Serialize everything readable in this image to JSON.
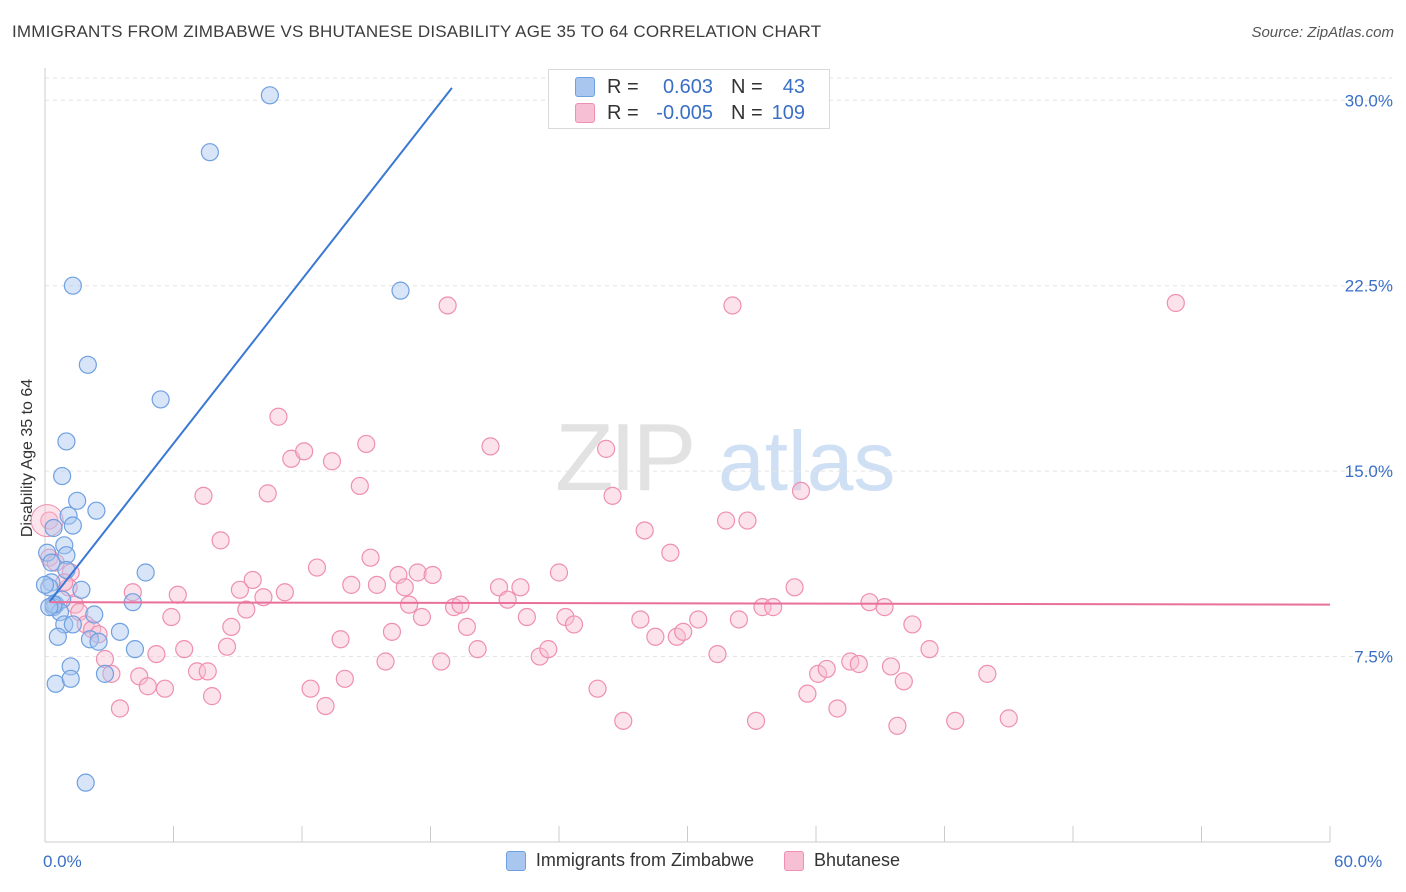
{
  "title": "IMMIGRANTS FROM ZIMBABWE VS BHUTANESE DISABILITY AGE 35 TO 64 CORRELATION CHART",
  "source": "Source: ZipAtlas.com",
  "watermark": {
    "zip": "ZIP",
    "atlas": "atlas"
  },
  "colors": {
    "blue": "#6fa0e0",
    "blue_fill": "#a9c6ef",
    "blue_line": "#3a78d4",
    "pink": "#ef8fb1",
    "pink_fill": "#f7bfd3",
    "pink_line": "#e8709a",
    "axis_text": "#3a6fc6"
  },
  "legend": {
    "rows": [
      {
        "r_label": "R =",
        "r_value": "0.603",
        "n_label": "N =",
        "n_value": "43",
        "series": "blue"
      },
      {
        "r_label": "R =",
        "r_value": "-0.005",
        "n_label": "N =",
        "n_value": "109",
        "series": "pink"
      }
    ]
  },
  "bottom_legend": [
    {
      "label": "Immigrants from Zimbabwe",
      "series": "blue"
    },
    {
      "label": "Bhutanese",
      "series": "pink"
    }
  ],
  "chart_data": {
    "type": "scatter",
    "title": "IMMIGRANTS FROM ZIMBABWE VS BHUTANESE DISABILITY AGE 35 TO 64 CORRELATION CHART",
    "xlabel": "",
    "ylabel": "Disability Age 35 to 64",
    "xlim": [
      0,
      60
    ],
    "ylim": [
      0,
      30.9
    ],
    "x_tick_labels": [
      "0.0%",
      "60.0%"
    ],
    "y_ticks": [
      7.5,
      15.0,
      22.5,
      30.0
    ],
    "y_tick_labels": [
      "7.5%",
      "15.0%",
      "22.5%",
      "30.0%"
    ],
    "grid": true,
    "series": [
      {
        "name": "Immigrants from Zimbabwe",
        "color": "blue",
        "trend": {
          "x0": 0.2,
          "y0": 9.7,
          "x1": 19.0,
          "y1": 30.5
        },
        "points": [
          [
            10.5,
            30.2
          ],
          [
            7.7,
            27.9
          ],
          [
            1.3,
            22.5
          ],
          [
            16.6,
            22.3
          ],
          [
            2.0,
            19.3
          ],
          [
            5.4,
            17.9
          ],
          [
            1.0,
            16.2
          ],
          [
            0.8,
            14.8
          ],
          [
            1.5,
            13.8
          ],
          [
            2.4,
            13.4
          ],
          [
            1.1,
            13.2
          ],
          [
            0.4,
            12.7
          ],
          [
            1.3,
            12.8
          ],
          [
            0.9,
            12.0
          ],
          [
            1.0,
            11.6
          ],
          [
            0.1,
            11.7
          ],
          [
            0.3,
            11.3
          ],
          [
            4.7,
            10.9
          ],
          [
            1.0,
            11.0
          ],
          [
            0.3,
            10.5
          ],
          [
            0.2,
            10.3
          ],
          [
            1.7,
            10.2
          ],
          [
            0.5,
            9.6
          ],
          [
            0.8,
            9.8
          ],
          [
            4.1,
            9.7
          ],
          [
            0.4,
            9.5
          ],
          [
            0.7,
            9.3
          ],
          [
            2.3,
            9.2
          ],
          [
            0.9,
            8.8
          ],
          [
            1.3,
            8.8
          ],
          [
            3.5,
            8.5
          ],
          [
            0.6,
            8.3
          ],
          [
            2.1,
            8.2
          ],
          [
            2.5,
            8.1
          ],
          [
            4.2,
            7.8
          ],
          [
            1.2,
            7.1
          ],
          [
            2.8,
            6.8
          ],
          [
            0.5,
            6.4
          ],
          [
            1.2,
            6.6
          ],
          [
            1.9,
            2.4
          ],
          [
            0.0,
            10.4
          ],
          [
            0.4,
            9.6
          ],
          [
            0.2,
            9.5
          ]
        ]
      },
      {
        "name": "Bhutanese",
        "color": "pink",
        "trend": {
          "x0": 0.2,
          "y0": 9.7,
          "x1": 60.0,
          "y1": 9.6
        },
        "points": [
          [
            0.2,
            13.0
          ],
          [
            0.2,
            11.5
          ],
          [
            0.5,
            11.3
          ],
          [
            1.2,
            10.9
          ],
          [
            1.1,
            10.3
          ],
          [
            0.9,
            10.5
          ],
          [
            1.4,
            9.6
          ],
          [
            1.6,
            9.3
          ],
          [
            1.9,
            8.8
          ],
          [
            2.2,
            8.6
          ],
          [
            2.5,
            8.4
          ],
          [
            2.8,
            7.4
          ],
          [
            3.1,
            6.8
          ],
          [
            3.5,
            5.4
          ],
          [
            4.1,
            10.1
          ],
          [
            4.4,
            6.7
          ],
          [
            4.8,
            6.3
          ],
          [
            5.2,
            7.6
          ],
          [
            5.6,
            6.2
          ],
          [
            5.9,
            9.1
          ],
          [
            6.2,
            10.0
          ],
          [
            6.5,
            7.8
          ],
          [
            7.1,
            6.9
          ],
          [
            7.4,
            14.0
          ],
          [
            7.6,
            6.9
          ],
          [
            7.8,
            5.9
          ],
          [
            8.2,
            12.2
          ],
          [
            8.5,
            7.9
          ],
          [
            8.7,
            8.7
          ],
          [
            9.1,
            10.2
          ],
          [
            9.4,
            9.4
          ],
          [
            9.7,
            10.6
          ],
          [
            10.2,
            9.9
          ],
          [
            10.4,
            14.1
          ],
          [
            10.9,
            17.2
          ],
          [
            11.2,
            10.1
          ],
          [
            11.5,
            15.5
          ],
          [
            12.1,
            15.8
          ],
          [
            12.4,
            6.2
          ],
          [
            12.7,
            11.1
          ],
          [
            13.1,
            5.5
          ],
          [
            13.4,
            15.4
          ],
          [
            13.8,
            8.2
          ],
          [
            14.0,
            6.6
          ],
          [
            14.3,
            10.4
          ],
          [
            14.7,
            14.4
          ],
          [
            15.0,
            16.1
          ],
          [
            15.2,
            11.5
          ],
          [
            15.5,
            10.4
          ],
          [
            15.9,
            7.3
          ],
          [
            16.2,
            8.5
          ],
          [
            16.5,
            10.8
          ],
          [
            16.8,
            10.3
          ],
          [
            17.0,
            9.6
          ],
          [
            17.4,
            10.9
          ],
          [
            17.6,
            9.1
          ],
          [
            18.1,
            10.8
          ],
          [
            18.5,
            7.3
          ],
          [
            18.8,
            21.7
          ],
          [
            19.1,
            9.5
          ],
          [
            19.4,
            9.6
          ],
          [
            19.7,
            8.7
          ],
          [
            20.2,
            7.8
          ],
          [
            20.8,
            16.0
          ],
          [
            21.2,
            10.3
          ],
          [
            21.6,
            9.8
          ],
          [
            22.2,
            10.3
          ],
          [
            22.5,
            9.1
          ],
          [
            23.1,
            7.5
          ],
          [
            23.5,
            7.8
          ],
          [
            24.0,
            10.9
          ],
          [
            24.3,
            9.1
          ],
          [
            24.7,
            8.8
          ],
          [
            25.8,
            6.2
          ],
          [
            26.2,
            15.9
          ],
          [
            26.5,
            14.0
          ],
          [
            27.0,
            4.9
          ],
          [
            27.8,
            9.0
          ],
          [
            28.0,
            12.6
          ],
          [
            28.5,
            8.3
          ],
          [
            29.2,
            11.7
          ],
          [
            29.5,
            8.3
          ],
          [
            29.8,
            8.5
          ],
          [
            30.5,
            9.0
          ],
          [
            31.4,
            7.6
          ],
          [
            31.8,
            13.0
          ],
          [
            32.1,
            21.7
          ],
          [
            32.4,
            9.0
          ],
          [
            32.8,
            13.0
          ],
          [
            33.2,
            4.9
          ],
          [
            33.5,
            9.5
          ],
          [
            34.0,
            9.5
          ],
          [
            35.0,
            10.3
          ],
          [
            35.3,
            14.2
          ],
          [
            35.6,
            6.0
          ],
          [
            36.1,
            6.8
          ],
          [
            36.5,
            7.0
          ],
          [
            37.0,
            5.4
          ],
          [
            37.6,
            7.3
          ],
          [
            38.0,
            7.2
          ],
          [
            38.5,
            9.7
          ],
          [
            39.2,
            9.5
          ],
          [
            39.5,
            7.1
          ],
          [
            39.8,
            4.7
          ],
          [
            40.1,
            6.5
          ],
          [
            40.5,
            8.8
          ],
          [
            41.3,
            7.8
          ],
          [
            42.5,
            4.9
          ],
          [
            44.0,
            6.8
          ],
          [
            45.0,
            5.0
          ],
          [
            52.8,
            21.8
          ]
        ]
      }
    ]
  },
  "axis": {
    "x_min_label": "0.0%",
    "x_max_label": "60.0%"
  }
}
